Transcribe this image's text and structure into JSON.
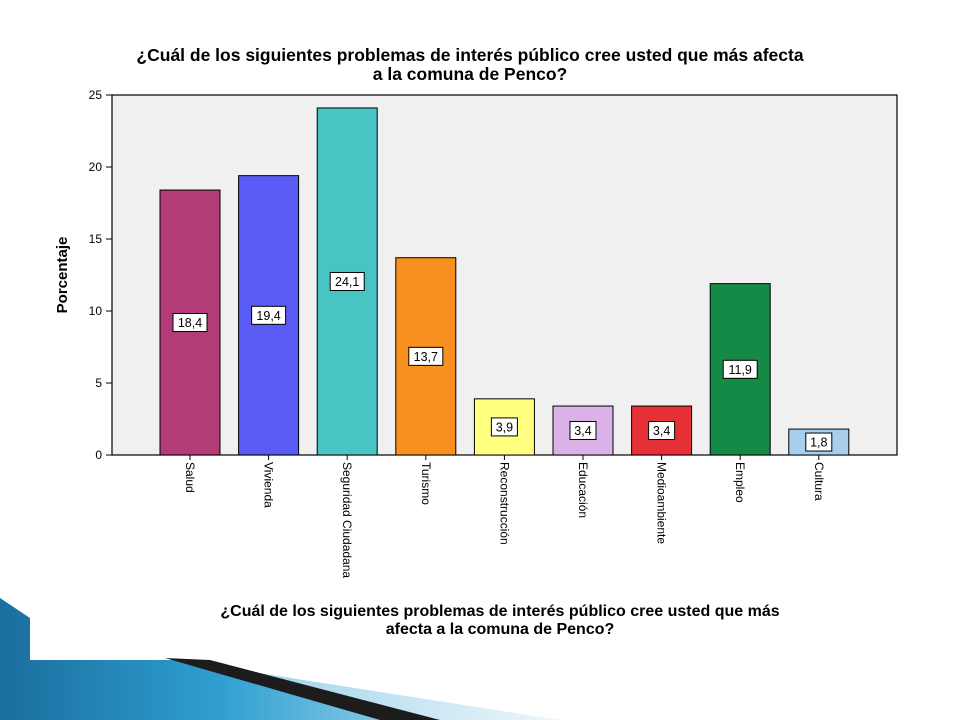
{
  "chart_data": {
    "type": "bar",
    "title_lines": [
      "¿Cuál de los siguientes problemas de interés público cree usted que más afecta",
      "a la comuna de Penco?"
    ],
    "xlabel_lines": [
      "¿Cuál de los siguientes problemas de interés público cree usted que más",
      "afecta a la comuna de Penco?"
    ],
    "ylabel": "Porcentaje",
    "categories": [
      "Salud",
      "Vivienda",
      "Seguridad Ciudadana",
      "Turismo",
      "Reconstrucción",
      "Educación",
      "Medioambiente",
      "Empleo",
      "Cultura"
    ],
    "values": [
      18.4,
      19.4,
      24.1,
      13.7,
      3.9,
      3.4,
      3.4,
      11.9,
      1.8
    ],
    "value_labels": [
      "18,4",
      "19,4",
      "24,1",
      "13,7",
      "3,9",
      "3,4",
      "3,4",
      "11,9",
      "1,8"
    ],
    "colors": [
      "#b33b78",
      "#5a5af5",
      "#48c4c4",
      "#f7901e",
      "#ffff80",
      "#dab2e8",
      "#e53036",
      "#158a47",
      "#a9cfee"
    ],
    "ylim": [
      0,
      25
    ],
    "yticks": [
      0,
      5,
      10,
      15,
      20,
      25
    ],
    "grid": false,
    "plot_background": "#f0f0f0"
  }
}
